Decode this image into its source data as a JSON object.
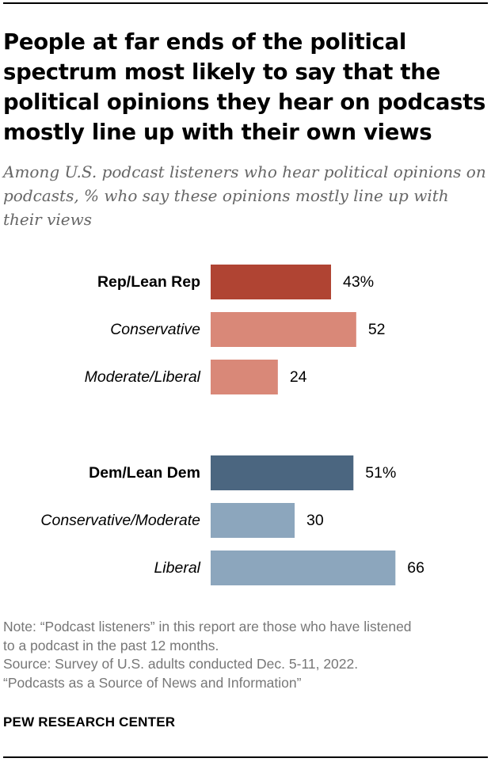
{
  "title": "People at far ends of the political spectrum most likely to say that the political opinions they hear on podcasts mostly line up with their own views",
  "subtitle": "Among U.S. podcast listeners who hear political opinions on podcasts, % who say these opinions mostly line up with their views",
  "colors": {
    "rep_dark": "#B04433",
    "rep_light": "#D98878",
    "dem_dark": "#4B6680",
    "dem_light": "#8CA6BD",
    "text": "#000000",
    "muted": "#777777"
  },
  "chart_data": {
    "type": "bar",
    "orientation": "horizontal",
    "categories": [
      "Rep/Lean Rep",
      "Conservative",
      "Moderate/Liberal",
      "Dem/Lean Dem",
      "Conservative/Moderate",
      "Liberal"
    ],
    "values": [
      43,
      52,
      24,
      51,
      30,
      66
    ],
    "value_labels": [
      "43%",
      "52",
      "24",
      "51%",
      "30",
      "66"
    ],
    "groups": [
      {
        "header": "Rep/Lean Rep",
        "items": [
          "Conservative",
          "Moderate/Liberal"
        ]
      },
      {
        "header": "Dem/Lean Dem",
        "items": [
          "Conservative/Moderate",
          "Liberal"
        ]
      }
    ],
    "xlim": [
      0,
      100
    ],
    "grid": false,
    "legend": "none"
  },
  "notes": {
    "note_line1": "Note: “Podcast listeners” in this report are those who have listened",
    "note_line2": "to a podcast in the past 12 months.",
    "source": "Source: Survey of U.S. adults conducted Dec. 5-11, 2022.",
    "report": "“Podcasts as a Source of News and Information”"
  },
  "brand": "PEW RESEARCH CENTER"
}
